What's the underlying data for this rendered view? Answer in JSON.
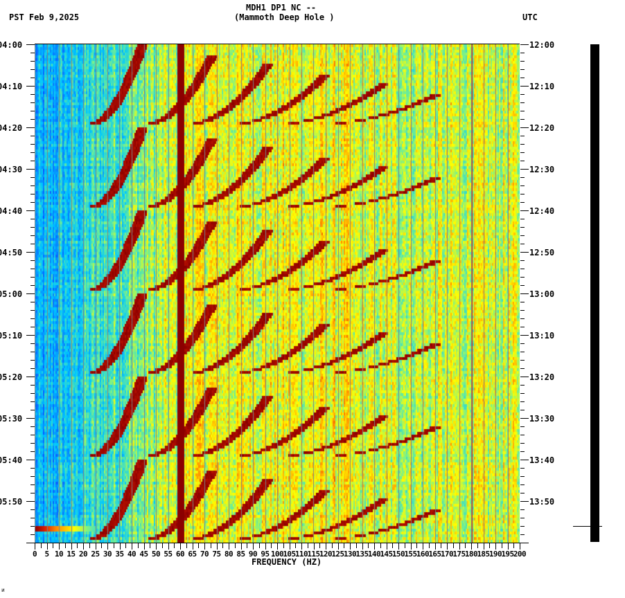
{
  "header": {
    "title_line1": "MDH1 DP1 NC --",
    "title_line2": "(Mammoth Deep Hole )",
    "left_timezone_date": "PST  Feb 9,2025",
    "right_timezone": "UTC"
  },
  "footer": {
    "corner_mark": "ᴎ"
  },
  "colors": {
    "low": "#0a50ff",
    "mid_low": "#00e0ff",
    "mid": "#a0ff60",
    "mid_high": "#ffff00",
    "high": "#ff8000",
    "peak": "#8b0000",
    "gridline": "#808080"
  },
  "chart_data": {
    "type": "heatmap",
    "title": "MDH1 DP1 NC -- (Mammoth Deep Hole )",
    "subtitle": "PST Feb 9,2025 / UTC",
    "xlabel": "FREQUENCY (HZ)",
    "ylabel_left": "PST",
    "ylabel_right": "UTC",
    "xlim": [
      0,
      200
    ],
    "x_ticks": [
      0,
      5,
      10,
      15,
      20,
      25,
      30,
      35,
      40,
      45,
      50,
      55,
      60,
      65,
      70,
      75,
      80,
      85,
      90,
      95,
      100,
      105,
      110,
      115,
      120,
      125,
      130,
      135,
      140,
      145,
      150,
      155,
      160,
      165,
      170,
      175,
      180,
      185,
      190,
      195,
      200
    ],
    "y_ticks_left": [
      "04:00",
      "04:10",
      "04:20",
      "04:30",
      "04:40",
      "04:50",
      "05:00",
      "05:10",
      "05:20",
      "05:30",
      "05:40",
      "05:50"
    ],
    "y_ticks_right": [
      "12:00",
      "12:10",
      "12:20",
      "12:30",
      "12:40",
      "12:50",
      "13:00",
      "13:10",
      "13:20",
      "13:30",
      "13:40",
      "13:50"
    ],
    "y_range_minutes": [
      0,
      120
    ],
    "grid": true,
    "grid_interval_hz": 5,
    "features": {
      "persistent_line_hz": 60,
      "faint_line_hz": 180,
      "sweep_cycle_start_minutes": [
        0,
        20,
        40,
        60,
        80,
        100
      ],
      "sweep_cycle_length_minutes": 19,
      "sweep_start_freqs_hz": [
        22,
        45,
        62,
        80,
        98,
        115
      ],
      "noise_floor_low_freq_hz": [
        0,
        25
      ],
      "broadband_high_energy_hz": [
        60,
        200
      ],
      "transient_event": {
        "minutes": 116.5,
        "freq_hz": [
          0,
          25
        ]
      }
    },
    "seismogram_trace": {
      "position": "right",
      "event_marker_minutes": 116
    }
  }
}
